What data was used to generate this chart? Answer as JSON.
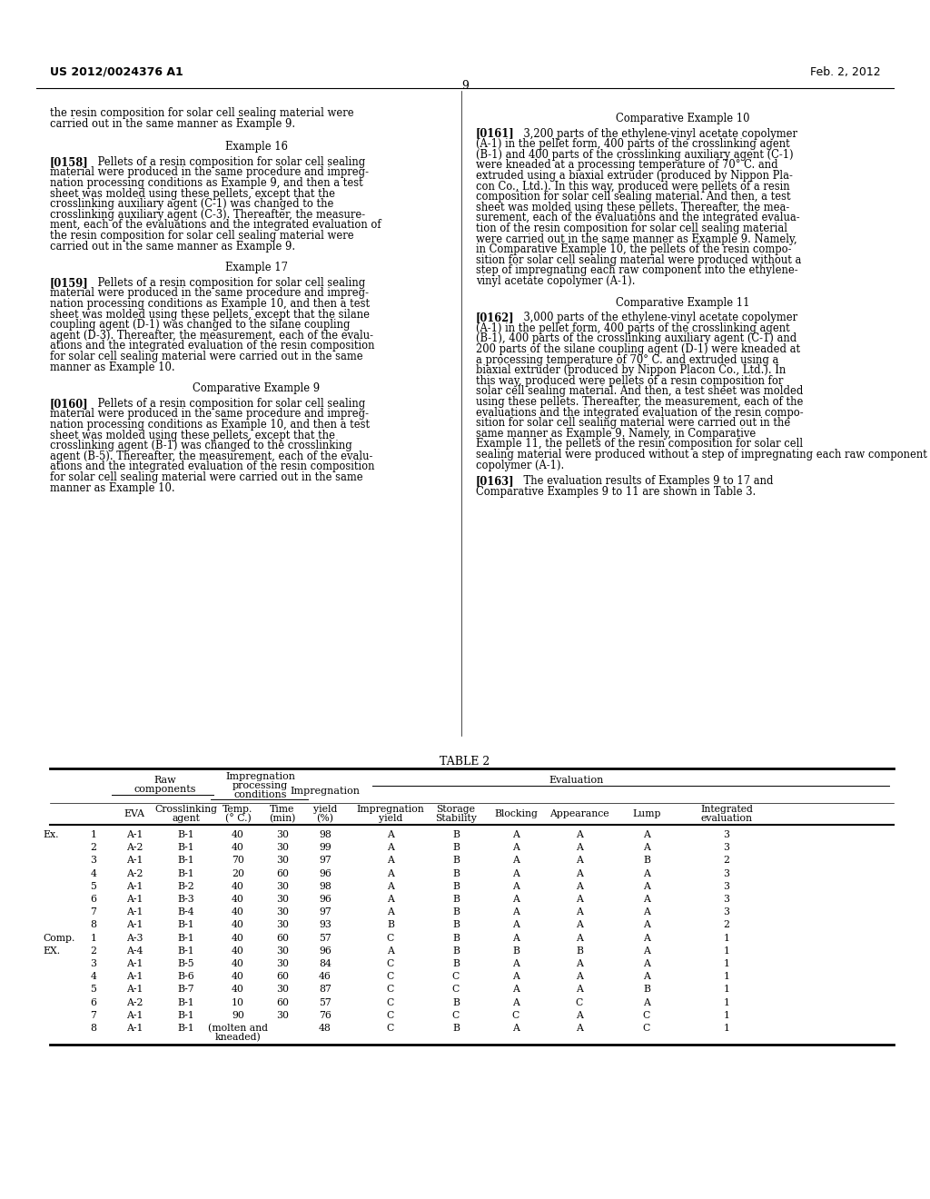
{
  "page_header_left": "US 2012/0024376 A1",
  "page_header_right": "Feb. 2, 2012",
  "page_number": "9",
  "background_color": "#ffffff",
  "text_color": "#000000",
  "left_col_paragraphs": [
    {
      "type": "continuation",
      "lines": [
        "the resin composition for solar cell sealing material were",
        "carried out in the same manner as Example 9."
      ]
    },
    {
      "type": "heading",
      "text": "Example 16"
    },
    {
      "type": "body",
      "tag": "[0158]",
      "lines": [
        "Pellets of a resin composition for solar cell sealing",
        "material were produced in the same procedure and impreg-",
        "nation processing conditions as Example 9, and then a test",
        "sheet was molded using these pellets, except that the",
        "crosslinking auxiliary agent (C-1) was changed to the",
        "crosslinking auxiliary agent (C-3). Thereafter, the measure-",
        "ment, each of the evaluations and the integrated evaluation of",
        "the resin composition for solar cell sealing material were",
        "carried out in the same manner as Example 9."
      ]
    },
    {
      "type": "heading",
      "text": "Example 17"
    },
    {
      "type": "body",
      "tag": "[0159]",
      "lines": [
        "Pellets of a resin composition for solar cell sealing",
        "material were produced in the same procedure and impreg-",
        "nation processing conditions as Example 10, and then a test",
        "sheet was molded using these pellets, except that the silane",
        "coupling agent (D-1) was changed to the silane coupling",
        "agent (D-3). Thereafter, the measurement, each of the evalu-",
        "ations and the integrated evaluation of the resin composition",
        "for solar cell sealing material were carried out in the same",
        "manner as Example 10."
      ]
    },
    {
      "type": "heading",
      "text": "Comparative Example 9"
    },
    {
      "type": "body",
      "tag": "[0160]",
      "lines": [
        "Pellets of a resin composition for solar cell sealing",
        "material were produced in the same procedure and impreg-",
        "nation processing conditions as Example 10, and then a test",
        "sheet was molded using these pellets, except that the",
        "crosslinking agent (B-1) was changed to the crosslinking",
        "agent (B-5). Thereafter, the measurement, each of the evalu-",
        "ations and the integrated evaluation of the resin composition",
        "for solar cell sealing material were carried out in the same",
        "manner as Example 10."
      ]
    }
  ],
  "right_col_paragraphs": [
    {
      "type": "heading",
      "text": "Comparative Example 10"
    },
    {
      "type": "body",
      "tag": "[0161]",
      "lines": [
        "3,200 parts of the ethylene-vinyl acetate copolymer",
        "(A-1) in the pellet form, 400 parts of the crosslinking agent",
        "(B-1) and 400 parts of the crosslinking auxiliary agent (C-1)",
        "were kneaded at a processing temperature of 70° C. and",
        "extruded using a biaxial extruder (produced by Nippon Pla-",
        "con Co., Ltd.). In this way, produced were pellets of a resin",
        "composition for solar cell sealing material. And then, a test",
        "sheet was molded using these pellets. Thereafter, the mea-",
        "surement, each of the evaluations and the integrated evalua-",
        "tion of the resin composition for solar cell sealing material",
        "were carried out in the same manner as Example 9. Namely,",
        "in Comparative Example 10, the pellets of the resin compo-",
        "sition for solar cell sealing material were produced without a",
        "step of impregnating each raw component into the ethylene-",
        "vinyl acetate copolymer (A-1)."
      ]
    },
    {
      "type": "heading",
      "text": "Comparative Example 11"
    },
    {
      "type": "body",
      "tag": "[0162]",
      "lines": [
        "3,000 parts of the ethylene-vinyl acetate copolymer",
        "(A-1) in the pellet form, 400 parts of the crosslinking agent",
        "(B-1), 400 parts of the crosslinking auxiliary agent (C-1) and",
        "200 parts of the silane coupling agent (D-1) were kneaded at",
        "a processing temperature of 70° C. and extruded using a",
        "biaxial extruder (produced by Nippon Placon Co., Ltd.). In",
        "this way, produced were pellets of a resin composition for",
        "solar cell sealing material. And then, a test sheet was molded",
        "using these pellets. Thereafter, the measurement, each of the",
        "evaluations and the integrated evaluation of the resin compo-",
        "sition for solar cell sealing material were carried out in the",
        "same manner as Example 9. Namely, in Comparative",
        "Example 11, the pellets of the resin composition for solar cell",
        "sealing material were produced without a step of impregnating each raw component into the ethylene-vinyl acetate",
        "copolymer (A-1)."
      ]
    },
    {
      "type": "body_inline",
      "tag": "[0163]",
      "lines": [
        "The evaluation results of Examples 9 to 17 and",
        "Comparative Examples 9 to 11 are shown in Table 3."
      ]
    }
  ],
  "table": {
    "title": "TABLE 2",
    "row_label_col1": [
      "Ex.",
      "",
      "",
      "",
      "",
      "",
      "",
      "",
      "Comp.",
      "EX.",
      "",
      "",
      "",
      "",
      "",
      ""
    ],
    "row_label_col2": [
      "1",
      "2",
      "3",
      "4",
      "5",
      "6",
      "7",
      "8",
      "1",
      "2",
      "3",
      "4",
      "5",
      "6",
      "7",
      "8"
    ],
    "rows": [
      [
        "A-1",
        "B-1",
        "40",
        "30",
        "98",
        "A",
        "B",
        "A",
        "A",
        "A",
        "3"
      ],
      [
        "A-2",
        "B-1",
        "40",
        "30",
        "99",
        "A",
        "B",
        "A",
        "A",
        "A",
        "3"
      ],
      [
        "A-1",
        "B-1",
        "70",
        "30",
        "97",
        "A",
        "B",
        "A",
        "A",
        "B",
        "2"
      ],
      [
        "A-2",
        "B-1",
        "20",
        "60",
        "96",
        "A",
        "B",
        "A",
        "A",
        "A",
        "3"
      ],
      [
        "A-1",
        "B-2",
        "40",
        "30",
        "98",
        "A",
        "B",
        "A",
        "A",
        "A",
        "3"
      ],
      [
        "A-1",
        "B-3",
        "40",
        "30",
        "96",
        "A",
        "B",
        "A",
        "A",
        "A",
        "3"
      ],
      [
        "A-1",
        "B-4",
        "40",
        "30",
        "97",
        "A",
        "B",
        "A",
        "A",
        "A",
        "3"
      ],
      [
        "A-1",
        "B-1",
        "40",
        "30",
        "93",
        "B",
        "B",
        "A",
        "A",
        "A",
        "2"
      ],
      [
        "A-3",
        "B-1",
        "40",
        "60",
        "57",
        "C",
        "B",
        "A",
        "A",
        "A",
        "1"
      ],
      [
        "A-4",
        "B-1",
        "40",
        "30",
        "96",
        "A",
        "B",
        "B",
        "B",
        "A",
        "1"
      ],
      [
        "A-1",
        "B-5",
        "40",
        "30",
        "84",
        "C",
        "B",
        "A",
        "A",
        "A",
        "1"
      ],
      [
        "A-1",
        "B-6",
        "40",
        "60",
        "46",
        "C",
        "C",
        "A",
        "A",
        "A",
        "1"
      ],
      [
        "A-1",
        "B-7",
        "40",
        "30",
        "87",
        "C",
        "C",
        "A",
        "A",
        "B",
        "1"
      ],
      [
        "A-2",
        "B-1",
        "10",
        "60",
        "57",
        "C",
        "B",
        "A",
        "C",
        "A",
        "1"
      ],
      [
        "A-1",
        "B-1",
        "90",
        "30",
        "76",
        "C",
        "C",
        "C",
        "A",
        "C",
        "1"
      ],
      [
        "A-1",
        "B-1",
        "(molten and\nkneaded)",
        "",
        "48",
        "C",
        "B",
        "A",
        "A",
        "C",
        "1"
      ]
    ]
  }
}
